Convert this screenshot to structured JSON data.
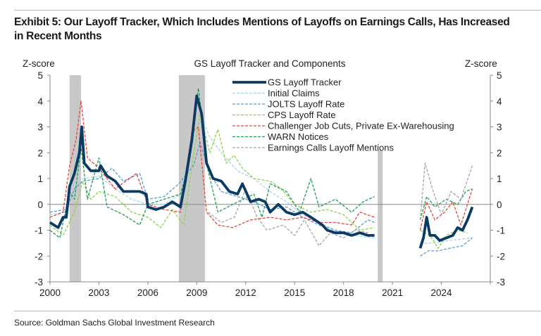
{
  "title": "Exhibit 5: Our Layoff Tracker, Which Includes Mentions of Layoffs on Earnings Calls, Has Increased in Recent Months",
  "source": "Source: Goldman Sachs Global Investment Research",
  "chart_data": {
    "type": "line",
    "title": "GS Layoff Tracker and Components",
    "ylabel_left": "Z-score",
    "ylabel_right": "Z-score",
    "xlim": [
      2000,
      2027
    ],
    "ylim": [
      -3,
      5
    ],
    "x_ticks": [
      "2000",
      "2003",
      "2006",
      "2009",
      "2012",
      "2015",
      "2018",
      "2021",
      "2024"
    ],
    "y_ticks": [
      "5",
      "4",
      "3",
      "2",
      "1",
      "0",
      "-1",
      "-2",
      "-3"
    ],
    "legend_placement": "top-center",
    "recessions": [
      [
        2001.2,
        2001.9
      ],
      [
        2007.9,
        2009.5
      ],
      [
        2020.1,
        2020.4
      ]
    ],
    "series": [
      {
        "name": "GS Layoff Tracker",
        "color": "#0b3a63",
        "style": "solid",
        "points": [
          [
            2000,
            -0.7
          ],
          [
            2000.5,
            -0.9
          ],
          [
            2000.8,
            -0.5
          ],
          [
            2001,
            -0.5
          ],
          [
            2001.2,
            0.7
          ],
          [
            2001.5,
            1.2
          ],
          [
            2001.8,
            2.0
          ],
          [
            2001.95,
            3.0
          ],
          [
            2002.1,
            1.6
          ],
          [
            2002.5,
            1.3
          ],
          [
            2003,
            1.3
          ],
          [
            2003.1,
            1.5
          ],
          [
            2003.5,
            1.1
          ],
          [
            2004,
            0.9
          ],
          [
            2004.5,
            0.5
          ],
          [
            2005,
            0.5
          ],
          [
            2005.5,
            0.5
          ],
          [
            2005.9,
            0.4
          ],
          [
            2006,
            -0.1
          ],
          [
            2006.5,
            -0.2
          ],
          [
            2007,
            -0.1
          ],
          [
            2007.5,
            0.1
          ],
          [
            2008,
            -0.1
          ],
          [
            2008.3,
            0.9
          ],
          [
            2008.7,
            2.5
          ],
          [
            2009,
            4.2
          ],
          [
            2009.3,
            3.5
          ],
          [
            2009.6,
            1.6
          ],
          [
            2010,
            1.0
          ],
          [
            2010.5,
            0.9
          ],
          [
            2011,
            0.5
          ],
          [
            2011.5,
            0.4
          ],
          [
            2011.8,
            0.8
          ],
          [
            2012.3,
            0.1
          ],
          [
            2012.8,
            0.2
          ],
          [
            2013.2,
            0.1
          ],
          [
            2013.5,
            -0.3
          ],
          [
            2014,
            0.0
          ],
          [
            2014.5,
            -0.3
          ],
          [
            2015,
            -0.4
          ],
          [
            2015.5,
            -0.3
          ],
          [
            2016,
            -0.5
          ],
          [
            2016.7,
            -0.8
          ],
          [
            2017,
            -1.0
          ],
          [
            2017.5,
            -1.1
          ],
          [
            2018,
            -1.1
          ],
          [
            2018.5,
            -1.2
          ],
          [
            2019,
            -1.1
          ],
          [
            2019.5,
            -1.2
          ],
          [
            2019.9,
            -1.2
          ],
          null,
          [
            2022.7,
            -1.7
          ],
          [
            2022.9,
            -1.3
          ],
          [
            2023.1,
            -0.5
          ],
          [
            2023.3,
            -1.2
          ],
          [
            2023.6,
            -1.2
          ],
          [
            2023.9,
            -1.4
          ],
          [
            2024.3,
            -1.3
          ],
          [
            2024.7,
            -1.2
          ],
          [
            2025,
            -0.9
          ],
          [
            2025.3,
            -1.0
          ],
          [
            2025.6,
            -0.6
          ],
          [
            2025.9,
            -0.1
          ]
        ]
      },
      {
        "name": "Initial Claims",
        "color": "#a8d4f0",
        "style": "dashed",
        "points": [
          [
            2000,
            -0.4
          ],
          [
            2001,
            -0.3
          ],
          [
            2001.5,
            0.8
          ],
          [
            2002,
            1.0
          ],
          [
            2003,
            1.1
          ],
          [
            2004,
            0.6
          ],
          [
            2005,
            0.2
          ],
          [
            2006,
            0.0
          ],
          [
            2007,
            0.0
          ],
          [
            2008,
            0.4
          ],
          [
            2008.8,
            2.5
          ],
          [
            2009.2,
            3.5
          ],
          [
            2009.8,
            2.6
          ],
          [
            2010.5,
            2.0
          ],
          [
            2011.5,
            1.3
          ],
          [
            2012.5,
            1.0
          ],
          [
            2013.5,
            0.5
          ],
          [
            2014.5,
            0.1
          ],
          [
            2015.5,
            -0.4
          ],
          [
            2016.5,
            -0.7
          ],
          [
            2017.5,
            -1.0
          ],
          [
            2018.5,
            -1.2
          ],
          [
            2019.9,
            -1.3
          ],
          null,
          [
            2022.7,
            -1.5
          ],
          [
            2023.5,
            -1.5
          ],
          [
            2024.5,
            -1.4
          ],
          [
            2025.9,
            -1.3
          ]
        ]
      },
      {
        "name": "JOLTS Layoff Rate",
        "color": "#5b9bd5",
        "style": "dashed",
        "points": [
          [
            2000,
            -0.3
          ],
          [
            2001,
            -0.2
          ],
          [
            2001.5,
            0.6
          ],
          [
            2002,
            0.9
          ],
          [
            2003,
            1.0
          ],
          [
            2003.8,
            1.4
          ],
          [
            2004.5,
            0.9
          ],
          [
            2005.5,
            1.2
          ],
          [
            2006,
            0.2
          ],
          [
            2007,
            0.3
          ],
          [
            2007.9,
            0.8
          ],
          [
            2008.8,
            1.5
          ],
          [
            2009.2,
            2.4
          ],
          [
            2009.8,
            1.2
          ],
          [
            2010.5,
            0.5
          ],
          [
            2011.5,
            0.3
          ],
          [
            2012.5,
            0.1
          ],
          [
            2013.5,
            -0.2
          ],
          [
            2014.5,
            -0.1
          ],
          [
            2015.5,
            -0.5
          ],
          [
            2016.5,
            -0.8
          ],
          [
            2017.5,
            -1.0
          ],
          [
            2018.5,
            -1.1
          ],
          [
            2019.5,
            -0.6
          ],
          [
            2019.9,
            -0.7
          ],
          null,
          [
            2022.7,
            -2.0
          ],
          [
            2023.2,
            -1.8
          ],
          [
            2023.8,
            -1.8
          ],
          [
            2024.5,
            -1.7
          ],
          [
            2025.3,
            -1.6
          ],
          [
            2025.9,
            -1.3
          ]
        ]
      },
      {
        "name": "CPS Layoff Rate",
        "color": "#8fd14f",
        "style": "dashed",
        "points": [
          [
            2000,
            -0.8
          ],
          [
            2000.8,
            -1.2
          ],
          [
            2001.5,
            -0.3
          ],
          [
            2002,
            0.9
          ],
          [
            2002.5,
            0.2
          ],
          [
            2003,
            0.5
          ],
          [
            2004,
            0.3
          ],
          [
            2005,
            -0.3
          ],
          [
            2006,
            -0.5
          ],
          [
            2006.8,
            -0.9
          ],
          [
            2007.5,
            -0.2
          ],
          [
            2008.2,
            -0.8
          ],
          [
            2008.7,
            1.5
          ],
          [
            2009.2,
            3.5
          ],
          [
            2009.8,
            2.0
          ],
          [
            2010.3,
            2.9
          ],
          [
            2010.8,
            1.6
          ],
          [
            2011.3,
            1.9
          ],
          [
            2011.8,
            1.4
          ],
          [
            2012.5,
            1.0
          ],
          [
            2013.5,
            0.9
          ],
          [
            2014.2,
            0.6
          ],
          [
            2015,
            0.0
          ],
          [
            2016,
            -0.3
          ],
          [
            2017,
            -0.2
          ],
          [
            2018,
            -0.4
          ],
          [
            2019,
            -1.0
          ],
          [
            2019.9,
            -0.9
          ],
          null,
          [
            2022.7,
            -1.0
          ],
          [
            2023.3,
            -1.2
          ],
          [
            2023.8,
            -1.7
          ],
          [
            2024.3,
            -1.2
          ],
          [
            2025,
            -1.0
          ],
          [
            2025.6,
            -1.1
          ]
        ]
      },
      {
        "name": "Challenger Job Cuts, Private Ex-Warehousing",
        "color": "#e8443a",
        "style": "dashed",
        "points": [
          [
            2000,
            -0.5
          ],
          [
            2000.8,
            -0.3
          ],
          [
            2001.2,
            1.5
          ],
          [
            2001.6,
            2.5
          ],
          [
            2001.9,
            4.0
          ],
          [
            2002.3,
            1.8
          ],
          [
            2003,
            1.4
          ],
          [
            2004,
            0.6
          ],
          [
            2005.3,
            1.2
          ],
          [
            2006,
            0.0
          ],
          [
            2007,
            -0.2
          ],
          [
            2008,
            -0.3
          ],
          [
            2008.7,
            2.8
          ],
          [
            2009.1,
            3.0
          ],
          [
            2009.6,
            -0.3
          ],
          [
            2010.3,
            -0.8
          ],
          [
            2011.2,
            -0.9
          ],
          [
            2012.3,
            -0.6
          ],
          [
            2013.5,
            -0.5
          ],
          [
            2014.5,
            -0.6
          ],
          [
            2015.5,
            -0.5
          ],
          [
            2016.5,
            -0.7
          ],
          [
            2017.5,
            -0.7
          ],
          [
            2018.5,
            -0.8
          ],
          [
            2019,
            -0.3
          ],
          [
            2019.9,
            -0.5
          ],
          null,
          [
            2022.7,
            -1.0
          ],
          [
            2023.1,
            0.1
          ],
          [
            2023.6,
            -0.6
          ],
          [
            2024.2,
            -0.3
          ],
          [
            2024.7,
            0.1
          ],
          [
            2025.2,
            -0.8
          ],
          [
            2025.9,
            0.6
          ]
        ]
      },
      {
        "name": "WARN Notices",
        "color": "#1e9c55",
        "style": "dashed",
        "points": [
          [
            2000,
            -1.0
          ],
          [
            2000.6,
            -1.3
          ],
          [
            2001.2,
            0.5
          ],
          [
            2001.5,
            0.2
          ],
          [
            2001.9,
            2.2
          ],
          [
            2002.3,
            0.2
          ],
          [
            2003,
            1.8
          ],
          [
            2003.5,
            -0.1
          ],
          [
            2004.5,
            -0.4
          ],
          [
            2005.5,
            -0.8
          ],
          [
            2006,
            0.0
          ],
          [
            2007,
            0.2
          ],
          [
            2008,
            0.4
          ],
          [
            2008.5,
            1.5
          ],
          [
            2009.1,
            4.5
          ],
          [
            2009.7,
            1.3
          ],
          [
            2010.3,
            -0.3
          ],
          [
            2011.2,
            0.0
          ],
          [
            2012.5,
            0.4
          ],
          [
            2013,
            -0.5
          ],
          [
            2013.5,
            0.8
          ],
          [
            2014.5,
            0.5
          ],
          [
            2015.3,
            -0.3
          ],
          [
            2016,
            1.0
          ],
          [
            2016.5,
            -0.1
          ],
          [
            2017.5,
            0.2
          ],
          [
            2018.5,
            -0.3
          ],
          [
            2019.2,
            0.1
          ],
          [
            2019.9,
            0.3
          ],
          null,
          [
            2022.7,
            -0.6
          ],
          [
            2023.1,
            0.3
          ],
          [
            2023.6,
            -0.1
          ],
          [
            2024.3,
            0.2
          ],
          [
            2025,
            0.0
          ],
          [
            2025.5,
            0.5
          ],
          [
            2025.9,
            0.6
          ]
        ]
      },
      {
        "name": "Earnings Calls Layoff Mentions",
        "color": "#a6a6a6",
        "style": "dashed",
        "points": [
          [
            2009.7,
            -0.3
          ],
          [
            2010.5,
            -0.7
          ],
          [
            2011.3,
            -0.5
          ],
          [
            2012,
            0.6
          ],
          [
            2012.7,
            -0.5
          ],
          [
            2013.3,
            -1.0
          ],
          [
            2014.3,
            -0.8
          ],
          [
            2015,
            -1.2
          ],
          [
            2015.6,
            -0.6
          ],
          [
            2016.5,
            -1.6
          ],
          [
            2017.2,
            -1.1
          ],
          [
            2018,
            -1.3
          ],
          [
            2018.7,
            -1.0
          ],
          [
            2019.5,
            -1.1
          ],
          null,
          [
            2022.7,
            -0.6
          ],
          [
            2023,
            1.6
          ],
          [
            2023.5,
            0.5
          ],
          [
            2024,
            -0.4
          ],
          [
            2024.6,
            0.5
          ],
          [
            2025.2,
            0.2
          ],
          [
            2025.9,
            1.5
          ]
        ]
      }
    ]
  }
}
